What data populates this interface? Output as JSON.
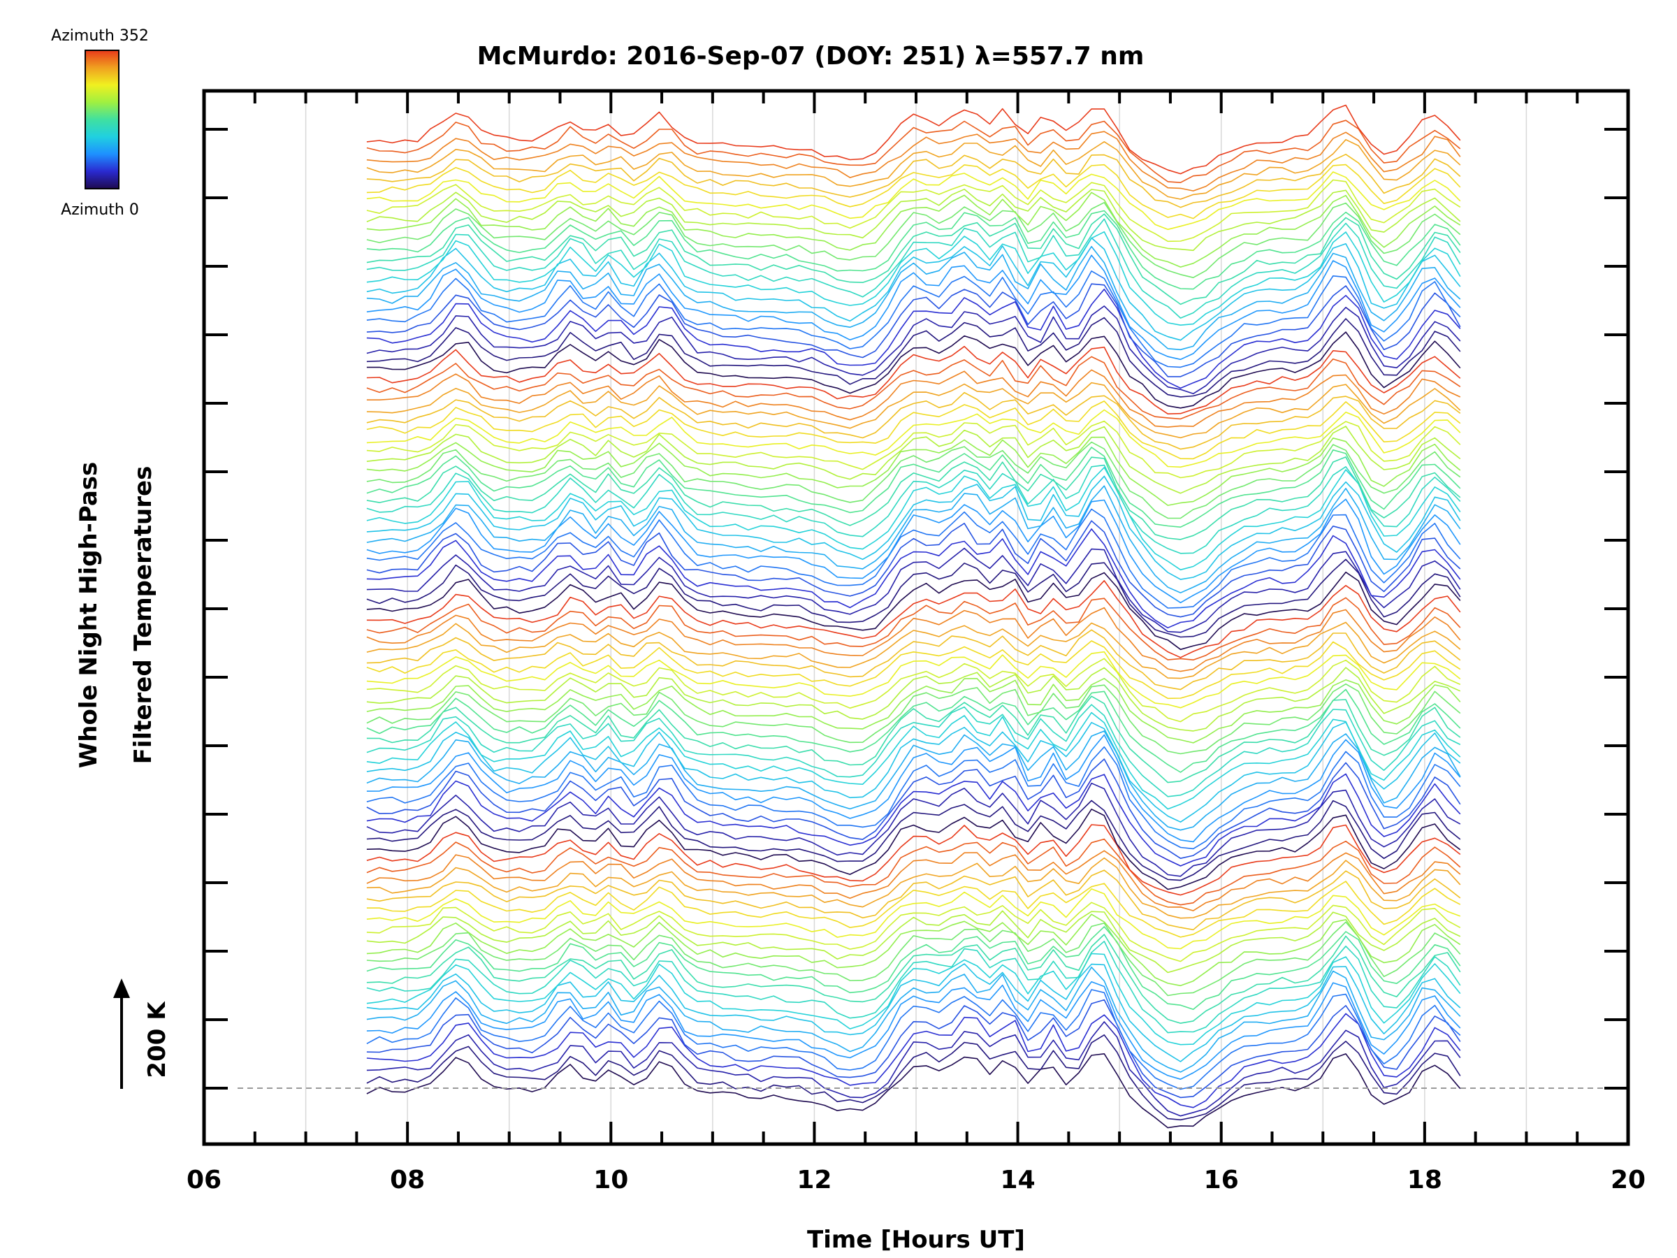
{
  "chart_data": {
    "type": "line",
    "title": "McMurdo: 2016-Sep-07 (DOY: 251) λ=557.7 nm",
    "xlabel": "Time [Hours UT]",
    "ylabel_line1": "Whole Night High-Pass",
    "ylabel_line2": "Filtered Temperatures",
    "xlim": [
      6,
      20
    ],
    "x_tick_labels": [
      "06",
      "08",
      "10",
      "12",
      "14",
      "16",
      "18",
      "20"
    ],
    "x_tick_values": [
      6,
      8,
      10,
      12,
      14,
      16,
      18,
      20
    ],
    "x_minor_step": 0.5,
    "y_major_tick_count": 15,
    "data_x_range": [
      7.6,
      18.4
    ],
    "series_count": 96,
    "series_offset_K": 50,
    "scale_bar_label": "200 K",
    "colorbar": {
      "colormap": "rainbow",
      "top_label": "Azimuth 352",
      "bottom_label": "Azimuth 0",
      "colors": [
        "#1e0a50",
        "#2a2ad0",
        "#1e90ff",
        "#20d0e0",
        "#40e0a0",
        "#a0f040",
        "#f0f020",
        "#f0a020",
        "#e83a1a"
      ]
    },
    "grid": true,
    "baseline_style": "dashed"
  }
}
